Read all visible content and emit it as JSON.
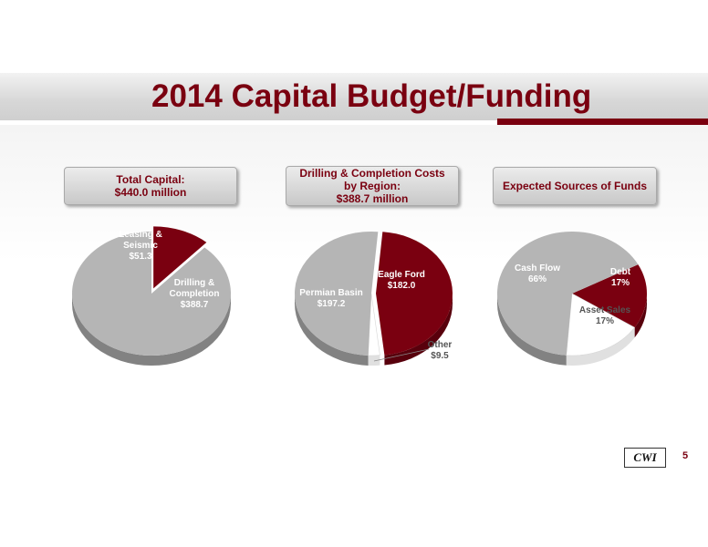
{
  "title": "2014 Capital Budget/Funding",
  "logo_text": "CWI",
  "page_number": "5",
  "colors": {
    "accent": "#7a0010",
    "gray": "#b5b5b5",
    "white": "#ffffff"
  },
  "chart_data": [
    {
      "type": "pie",
      "header": [
        "Total Capital:",
        "$440.0 million"
      ],
      "slices": [
        {
          "label": [
            "Leasing &",
            "Seismic",
            "$51.3"
          ],
          "value": 51.3,
          "color": "#7a0010"
        },
        {
          "label": [
            "Drilling &",
            "Completion",
            "$388.7"
          ],
          "value": 388.7,
          "color": "#b5b5b5"
        }
      ]
    },
    {
      "type": "pie",
      "header": [
        "Drilling & Completion Costs",
        "by Region:",
        "$388.7 million"
      ],
      "slices": [
        {
          "label": [
            "Eagle Ford",
            "$182.0"
          ],
          "value": 182.0,
          "color": "#7a0010"
        },
        {
          "label": [
            "Other",
            "$9.5"
          ],
          "value": 9.5,
          "color": "#ffffff"
        },
        {
          "label": [
            "Permian Basin",
            "$197.2"
          ],
          "value": 197.2,
          "color": "#b5b5b5"
        }
      ]
    },
    {
      "type": "pie",
      "header": [
        "Expected Sources of Funds"
      ],
      "slices": [
        {
          "label": [
            "Debt",
            "17%"
          ],
          "value": 17,
          "color": "#7a0010"
        },
        {
          "label": [
            "Asset Sales",
            "17%"
          ],
          "value": 17,
          "color": "#ffffff"
        },
        {
          "label": [
            "Cash Flow",
            "66%"
          ],
          "value": 66,
          "color": "#b5b5b5"
        }
      ]
    }
  ]
}
